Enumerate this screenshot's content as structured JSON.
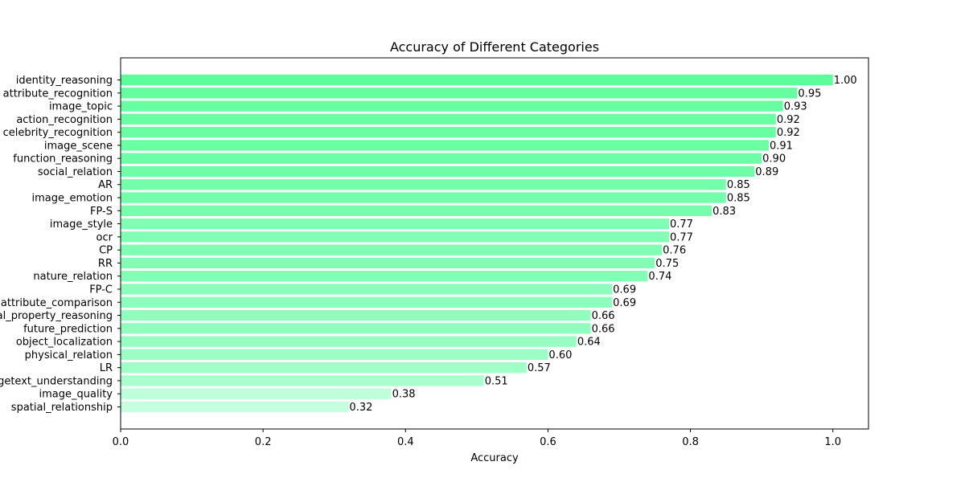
{
  "chart_data": {
    "type": "bar",
    "orientation": "horizontal",
    "title": "Accuracy of Different Categories",
    "xlabel": "Accuracy",
    "ylabel": "",
    "xlim": [
      0,
      1.05
    ],
    "xticks": [
      "0.0",
      "0.2",
      "0.4",
      "0.6",
      "0.8",
      "1.0"
    ],
    "grid": false,
    "legend": "none",
    "categories": [
      "identity_reasoning",
      "attribute_recognition",
      "image_topic",
      "action_recognition",
      "celebrity_recognition",
      "image_scene",
      "function_reasoning",
      "social_relation",
      "AR",
      "image_emotion",
      "FP-S",
      "image_style",
      "ocr",
      "CP",
      "RR",
      "nature_relation",
      "FP-C",
      "attribute_comparison",
      "physical_property_reasoning",
      "future_prediction",
      "object_localization",
      "physical_relation",
      "LR",
      "structuralized_imagetext_understanding",
      "image_quality",
      "spatial_relationship"
    ],
    "values": [
      1.0,
      0.95,
      0.93,
      0.92,
      0.92,
      0.91,
      0.9,
      0.89,
      0.85,
      0.85,
      0.83,
      0.77,
      0.77,
      0.76,
      0.75,
      0.74,
      0.69,
      0.69,
      0.66,
      0.66,
      0.64,
      0.6,
      0.57,
      0.51,
      0.38,
      0.32
    ],
    "value_labels": [
      "1.00",
      "0.95",
      "0.93",
      "0.92",
      "0.92",
      "0.91",
      "0.90",
      "0.89",
      "0.85",
      "0.85",
      "0.83",
      "0.77",
      "0.77",
      "0.76",
      "0.75",
      "0.74",
      "0.69",
      "0.69",
      "0.66",
      "0.66",
      "0.64",
      "0.60",
      "0.57",
      "0.51",
      "0.38",
      "0.32"
    ],
    "colors": {
      "bar_high": "#5cfe9c",
      "bar_low": "#c8fee0",
      "axis": "#000000"
    }
  }
}
